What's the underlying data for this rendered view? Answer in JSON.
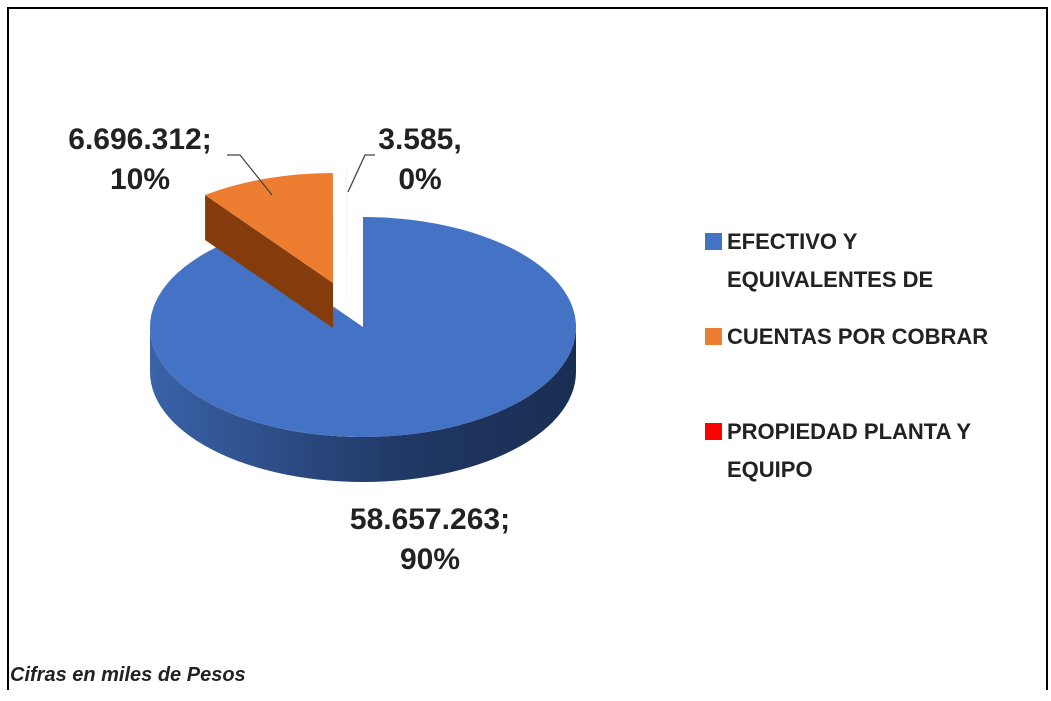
{
  "chart_data": {
    "type": "pie3d",
    "categories": [
      "EFECTIVO Y EQUIVALENTES DE",
      "CUENTAS POR COBRAR",
      "PROPIEDAD PLANTA Y EQUIPO"
    ],
    "values": [
      58657263,
      6696312,
      3585
    ],
    "value_labels": [
      "58.657.263;\n90%",
      "6.696.312;\n10%",
      "3.585,\n0%"
    ],
    "colors": [
      "#4472c4",
      "#ed7d31",
      "#ff0000"
    ],
    "legend": "right",
    "annotation": "Cifras en miles de Pesos"
  }
}
